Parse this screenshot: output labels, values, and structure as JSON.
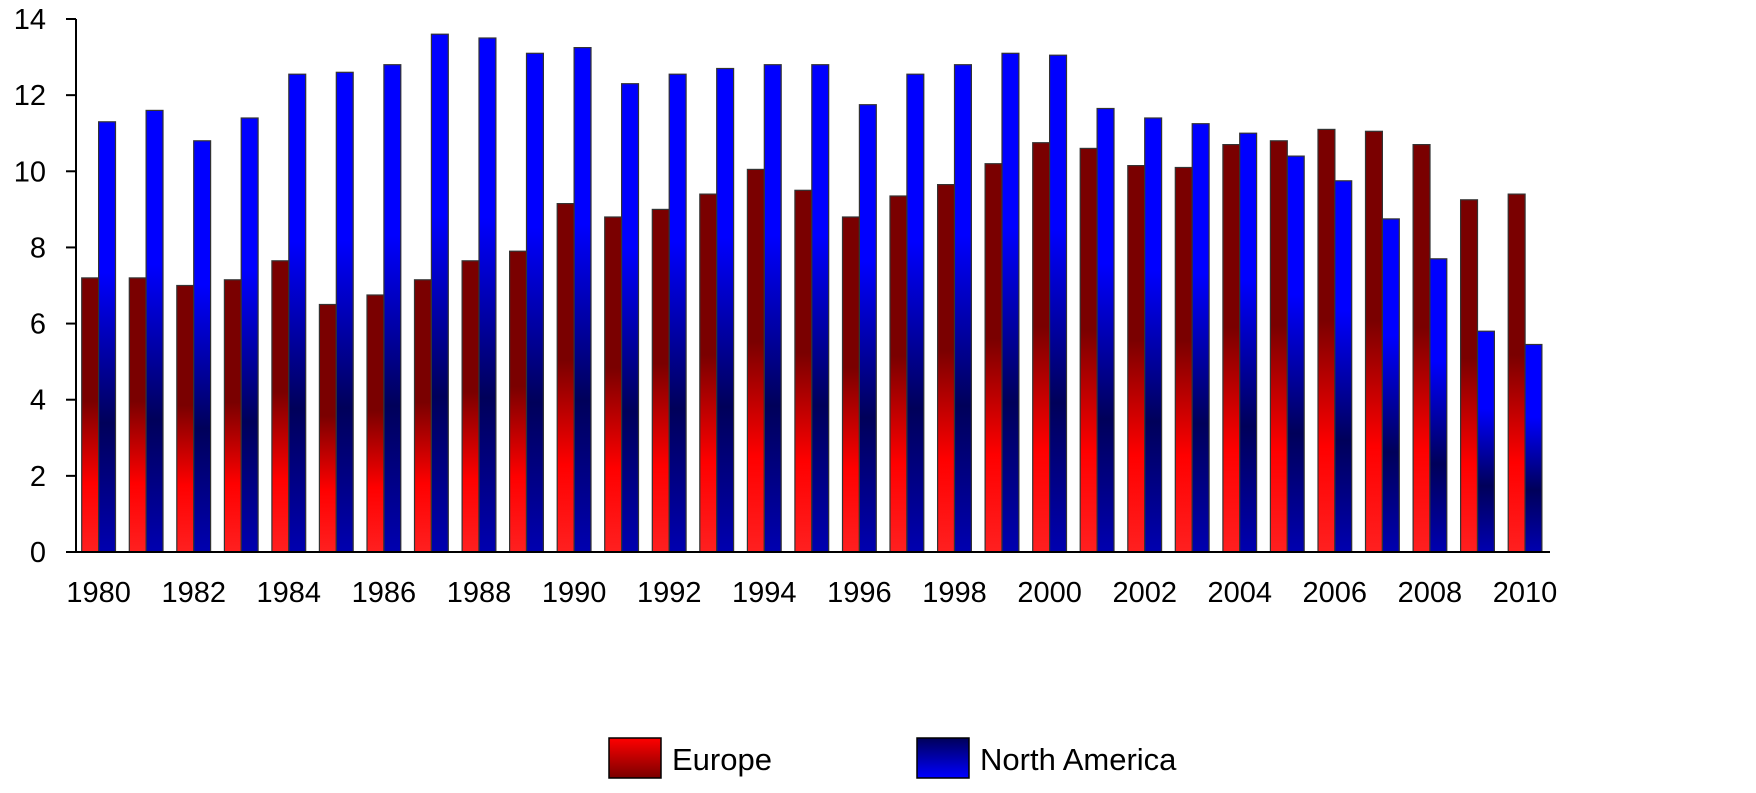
{
  "chart_data": {
    "type": "bar",
    "title": "",
    "xlabel": "",
    "ylabel": "",
    "ylim": [
      0,
      14
    ],
    "yticks": [
      0,
      2,
      4,
      6,
      8,
      10,
      12,
      14
    ],
    "grid": false,
    "legend_position": "bottom-center",
    "categories": [
      "1980",
      "1981",
      "1982",
      "1983",
      "1984",
      "1985",
      "1986",
      "1987",
      "1988",
      "1989",
      "1990",
      "1991",
      "1992",
      "1993",
      "1994",
      "1995",
      "1996",
      "1997",
      "1998",
      "1999",
      "2000",
      "2001",
      "2002",
      "2003",
      "2004",
      "2005",
      "2006",
      "2007",
      "2008",
      "2009",
      "2010"
    ],
    "xtick_labels": [
      "1980",
      "1982",
      "1984",
      "1986",
      "1988",
      "1990",
      "1992",
      "1994",
      "1996",
      "1998",
      "2000",
      "2002",
      "2004",
      "2006",
      "2008",
      "2010"
    ],
    "series": [
      {
        "name": "Europe",
        "color": "#ff0000",
        "values": [
          7.2,
          7.2,
          7.0,
          7.15,
          7.65,
          6.5,
          6.75,
          7.15,
          7.65,
          7.9,
          9.15,
          8.8,
          9.0,
          9.4,
          10.05,
          9.5,
          8.8,
          9.35,
          9.65,
          10.2,
          10.75,
          10.6,
          10.15,
          10.1,
          10.7,
          10.8,
          11.1,
          11.05,
          10.7,
          9.25,
          9.4
        ]
      },
      {
        "name": "North America",
        "color": "#0000ff",
        "values": [
          11.3,
          11.6,
          10.8,
          11.4,
          12.55,
          12.6,
          12.8,
          13.6,
          13.5,
          13.1,
          13.25,
          12.3,
          12.55,
          12.7,
          12.8,
          12.8,
          11.75,
          12.55,
          12.8,
          13.1,
          13.05,
          11.65,
          11.4,
          11.25,
          11.0,
          10.4,
          9.75,
          8.75,
          7.7,
          5.8,
          5.45
        ]
      }
    ]
  }
}
